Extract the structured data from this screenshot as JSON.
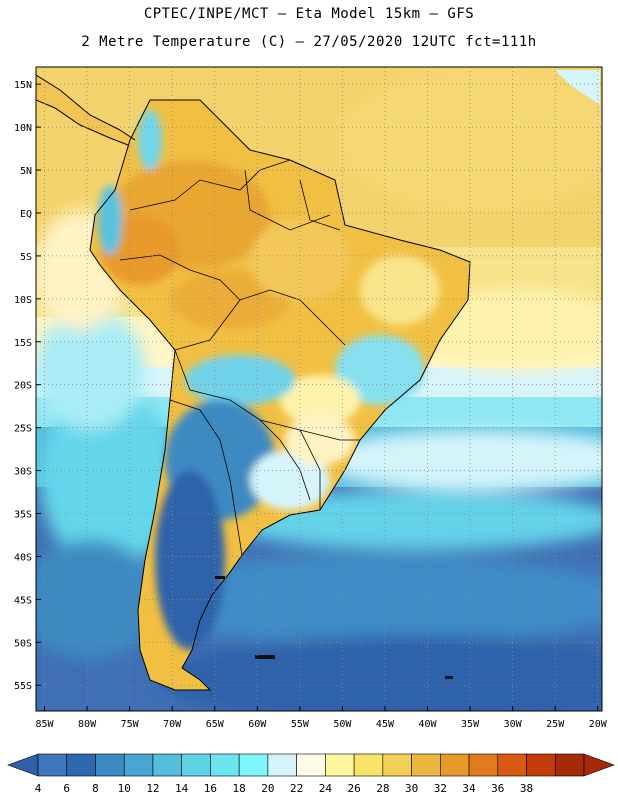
{
  "title_line1": "CPTEC/INPE/MCT –  Eta Model 15km – GFS",
  "title_line2": "2 Metre Temperature (C) – 27/05/2020 12UTC fct=111h",
  "lat_labels": [
    "15N",
    "10N",
    "5N",
    "EQ",
    "5S",
    "10S",
    "15S",
    "20S",
    "25S",
    "30S",
    "35S",
    "40S",
    "45S",
    "50S",
    "55S"
  ],
  "lat_values": [
    15,
    10,
    5,
    0,
    -5,
    -10,
    -15,
    -20,
    -25,
    -30,
    -35,
    -40,
    -45,
    -50,
    -55
  ],
  "lon_labels": [
    "85W",
    "80W",
    "75W",
    "70W",
    "65W",
    "60W",
    "55W",
    "50W",
    "45W",
    "40W",
    "35W",
    "30W",
    "25W",
    "20W"
  ],
  "lon_values": [
    -85,
    -80,
    -75,
    -70,
    -65,
    -60,
    -55,
    -50,
    -45,
    -40,
    -35,
    -30,
    -25,
    -20
  ],
  "legend": {
    "labels": [
      "4",
      "6",
      "8",
      "10",
      "12",
      "14",
      "16",
      "18",
      "20",
      "22",
      "24",
      "26",
      "28",
      "30",
      "32",
      "34",
      "36",
      "38"
    ],
    "colors": [
      "#3f76bd",
      "#2f68ae",
      "#3c8ac3",
      "#48a7d2",
      "#54bedd",
      "#5fd3e6",
      "#6be6f0",
      "#7ef6fb",
      "#d6f5fb",
      "#fffbe6",
      "#fff7a0",
      "#f9e46a",
      "#f2cf55",
      "#ebb83f",
      "#e69a2a",
      "#e27a1e",
      "#d95a12",
      "#c33d0c",
      "#a62a08"
    ],
    "arrow_left_color": "#3060a8",
    "arrow_right_color": "#a62a08"
  },
  "chart_data": {
    "type": "heatmap",
    "title": "2 Metre Temperature (C)",
    "model": "Eta Model 15km – GFS",
    "source": "CPTEC/INPE/MCT",
    "run": "27/05/2020 12UTC",
    "forecast_hour": "111h",
    "lon_range": [
      -86,
      -19.5
    ],
    "lat_range": [
      -58,
      17
    ],
    "colorbar_levels": [
      4,
      6,
      8,
      10,
      12,
      14,
      16,
      18,
      20,
      22,
      24,
      26,
      28,
      30,
      32,
      34,
      36,
      38
    ],
    "units": "C"
  }
}
